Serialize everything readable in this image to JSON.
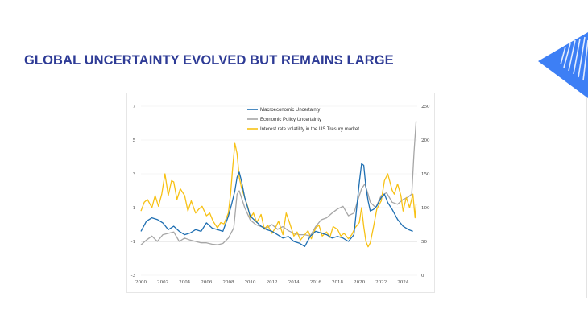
{
  "slide": {
    "title": "GLOBAL UNCERTAINTY EVOLVED BUT REMAINS LARGE",
    "logo_icon": "blue-triangle-logo-icon"
  },
  "chart_data": {
    "type": "line",
    "title": "",
    "xlabel": "",
    "ylabel_left": "",
    "ylabel_right": "",
    "xlim": [
      2000,
      2025.3
    ],
    "ylim_left": [
      -3,
      7
    ],
    "ylim_right": [
      0,
      250
    ],
    "x_ticks": [
      "2000",
      "2002",
      "2004",
      "2006",
      "2008",
      "2010",
      "2012",
      "2014",
      "2016",
      "2018",
      "2020",
      "2022",
      "2024"
    ],
    "y_ticks_left": [
      "-3",
      "-1",
      "1",
      "3",
      "5",
      "7"
    ],
    "y_ticks_right": [
      "0",
      "50",
      "100",
      "150",
      "200",
      "250"
    ],
    "legend_position": "top-center",
    "series": [
      {
        "name": "Macroeconomic Uncertainty",
        "axis": "left",
        "color": "#1f6fb2",
        "x": [
          2000,
          2000.5,
          2001,
          2001.5,
          2002,
          2002.5,
          2003,
          2003.5,
          2004,
          2004.5,
          2005,
          2005.5,
          2006,
          2006.5,
          2007,
          2007.5,
          2008,
          2008.3,
          2008.6,
          2008.8,
          2009,
          2009.2,
          2009.5,
          2010,
          2010.5,
          2011,
          2011.5,
          2012,
          2012.5,
          2013,
          2013.5,
          2014,
          2014.5,
          2015,
          2015.5,
          2016,
          2016.5,
          2017,
          2017.5,
          2018,
          2018.5,
          2019,
          2019.5,
          2020,
          2020.2,
          2020.4,
          2020.6,
          2020.8,
          2021,
          2021.3,
          2021.6,
          2022,
          2022.3,
          2022.6,
          2023,
          2023.5,
          2024,
          2024.5,
          2024.9
        ],
        "values": [
          -0.4,
          0.2,
          0.4,
          0.3,
          0.1,
          -0.3,
          -0.1,
          -0.4,
          -0.6,
          -0.5,
          -0.3,
          -0.4,
          0.1,
          -0.2,
          -0.3,
          -0.4,
          0.5,
          1.2,
          2.0,
          2.8,
          3.1,
          2.6,
          1.6,
          0.5,
          0.2,
          -0.1,
          -0.3,
          -0.4,
          -0.6,
          -0.8,
          -0.7,
          -1.0,
          -1.1,
          -1.3,
          -0.7,
          -0.4,
          -0.5,
          -0.6,
          -0.8,
          -0.7,
          -0.8,
          -1.0,
          -0.6,
          2.5,
          3.6,
          3.5,
          2.2,
          1.4,
          0.8,
          0.9,
          1.1,
          1.6,
          1.8,
          1.3,
          0.9,
          0.3,
          -0.1,
          -0.3,
          -0.4
        ]
      },
      {
        "name": "Economic Policy Uncertainty",
        "axis": "right",
        "color": "#a6a6a6",
        "x": [
          2000,
          2000.5,
          2001,
          2001.5,
          2002,
          2002.5,
          2003,
          2003.5,
          2004,
          2004.5,
          2005,
          2005.5,
          2006,
          2006.5,
          2007,
          2007.5,
          2008,
          2008.5,
          2008.8,
          2009,
          2009.5,
          2010,
          2010.5,
          2011,
          2011.5,
          2012,
          2012.5,
          2013,
          2013.5,
          2014,
          2014.5,
          2015,
          2015.5,
          2016,
          2016.5,
          2017,
          2017.5,
          2018,
          2018.5,
          2019,
          2019.5,
          2020,
          2020.2,
          2020.5,
          2020.8,
          2021,
          2021.5,
          2022,
          2022.5,
          2023,
          2023.5,
          2024,
          2024.4,
          2024.8,
          2025,
          2025.2
        ],
        "values": [
          45,
          52,
          58,
          50,
          60,
          62,
          64,
          50,
          55,
          52,
          50,
          48,
          48,
          46,
          45,
          47,
          55,
          70,
          120,
          125,
          100,
          82,
          75,
          72,
          70,
          75,
          68,
          72,
          66,
          62,
          60,
          60,
          58,
          72,
          82,
          85,
          92,
          98,
          102,
          88,
          92,
          118,
          128,
          135,
          120,
          108,
          100,
          118,
          122,
          108,
          105,
          112,
          115,
          120,
          180,
          228
        ]
      },
      {
        "name": "Interest rate volatility in the US Tresury market",
        "axis": "right",
        "color": "#f7c115",
        "x": [
          2000,
          2000.3,
          2000.6,
          2001,
          2001.3,
          2001.6,
          2001.9,
          2002.2,
          2002.5,
          2002.8,
          2003,
          2003.3,
          2003.6,
          2004,
          2004.3,
          2004.6,
          2005,
          2005.3,
          2005.6,
          2006,
          2006.3,
          2006.6,
          2007,
          2007.3,
          2007.6,
          2008,
          2008.2,
          2008.4,
          2008.6,
          2008.8,
          2009,
          2009.2,
          2009.5,
          2009.8,
          2010,
          2010.3,
          2010.6,
          2011,
          2011.3,
          2011.6,
          2012,
          2012.3,
          2012.6,
          2013,
          2013.3,
          2013.6,
          2014,
          2014.3,
          2014.6,
          2015,
          2015.3,
          2015.6,
          2016,
          2016.3,
          2016.6,
          2017,
          2017.3,
          2017.6,
          2018,
          2018.3,
          2018.6,
          2019,
          2019.3,
          2019.6,
          2020,
          2020.2,
          2020.4,
          2020.6,
          2020.8,
          2021,
          2021.3,
          2021.6,
          2022,
          2022.3,
          2022.6,
          2023,
          2023.2,
          2023.5,
          2023.8,
          2024,
          2024.3,
          2024.6,
          2024.9,
          2025.1,
          2025.2
        ],
        "values": [
          95,
          108,
          112,
          100,
          118,
          102,
          120,
          150,
          118,
          140,
          138,
          112,
          128,
          118,
          95,
          110,
          92,
          98,
          102,
          88,
          92,
          80,
          70,
          78,
          76,
          92,
          120,
          160,
          195,
          180,
          145,
          130,
          115,
          100,
          85,
          92,
          78,
          90,
          68,
          74,
          62,
          70,
          80,
          60,
          92,
          78,
          58,
          64,
          52,
          60,
          66,
          54,
          70,
          74,
          58,
          64,
          56,
          72,
          68,
          58,
          62,
          54,
          60,
          70,
          78,
          100,
          72,
          50,
          42,
          48,
          72,
          98,
          110,
          140,
          150,
          126,
          120,
          135,
          118,
          95,
          115,
          100,
          120,
          85,
          106
        ]
      }
    ]
  }
}
